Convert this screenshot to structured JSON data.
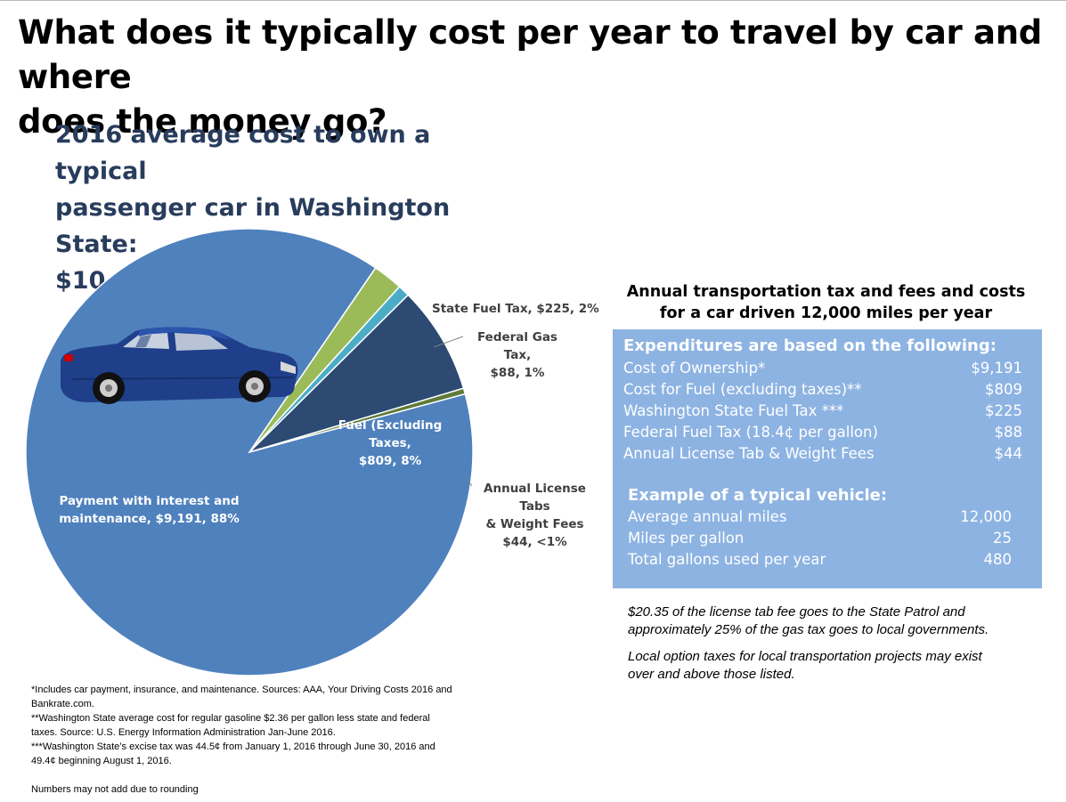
{
  "page": {
    "title_line1": "What does it typically cost per year to travel by car and where",
    "title_line2": "does  the money go?",
    "subtitle_line1": "2016 average cost to own a typical",
    "subtitle_line2": "passenger car in Washington State:",
    "subtitle_line3": "$10,357 per year"
  },
  "chart_data": {
    "type": "pie",
    "title": "2016 average cost to own a typical passenger car in Washington State: $10,357 per year",
    "total": 10357,
    "slices": [
      {
        "label": "Payment with interest and maintenance",
        "value": 9191,
        "percent": "88%",
        "color": "#4f81bd"
      },
      {
        "label": "State Fuel Tax",
        "value": 225,
        "percent": "2%",
        "color": "#9bbb59"
      },
      {
        "label": "Federal Gas Tax",
        "value": 88,
        "percent": "1%",
        "color": "#4bacc6"
      },
      {
        "label": "Fuel (Excluding Taxes)",
        "value": 809,
        "percent": "8%",
        "color": "#2c4a72"
      },
      {
        "label": "Annual License Tabs & Weight Fees",
        "value": 44,
        "percent": "<1%",
        "color": "#5f7a3a"
      }
    ]
  },
  "labels": {
    "payment_1": "Payment with interest and",
    "payment_2": "maintenance, $9,191, 88%",
    "state_fuel": "State Fuel Tax, $225, 2%",
    "federal_1": "Federal Gas Tax,",
    "federal_2": "$88, 1%",
    "fuel_1": "Fuel (Excluding Taxes,",
    "fuel_2": "$809, 8%",
    "license_1": "Annual License Tabs",
    "license_2": "& Weight Fees",
    "license_3": "$44, <1%"
  },
  "table": {
    "heading_1": "Annual transportation tax and fees and costs",
    "heading_2": "for a car driven 12,000 miles per year",
    "expenditures_title": "Expenditures are based on the following:",
    "expenditures": [
      {
        "label": "Cost of Ownership*",
        "value": "$9,191"
      },
      {
        "label": "Cost for Fuel (excluding taxes)**",
        "value": "$809"
      },
      {
        "label": "Washington State Fuel Tax ***",
        "value": "$225"
      },
      {
        "label": "Federal Fuel  Tax (18.4¢ per gallon)",
        "value": "$88"
      },
      {
        "label": "Annual License Tab & Weight Fees",
        "value": "$44"
      }
    ],
    "example_title": "Example of a typical vehicle:",
    "example": [
      {
        "label": "Average annual miles",
        "value": "12,000"
      },
      {
        "label": "Miles per gallon",
        "value": "25"
      },
      {
        "label": "Total gallons used per year",
        "value": "480"
      }
    ]
  },
  "notes": {
    "note1_line1": "$20.35 of the license tab fee goes to the State Patrol and",
    "note1_line2": "approximately 25% of the gas tax goes to local governments.",
    "note2_line1": "Local option taxes for local transportation projects may exist",
    "note2_line2": "over and above those listed."
  },
  "footnotes": {
    "f1_line1": "*Includes car payment, insurance, and maintenance. Sources: AAA, Your Driving Costs 2016 and",
    "f1_line2": "Bankrate.com.",
    "f2_line1": "**Washington State average cost for regular gasoline $2.36 per gallon less state and federal",
    "f2_line2": "taxes. Source: U.S. Energy Information Administration Jan-June 2016.",
    "f3_line1": "***Washington State’s excise tax was 44.5¢ from January 1, 2016 through June 30, 2016 and",
    "f3_line2": "49.4¢ beginning August 1, 2016.",
    "f4": "Numbers may not add due to rounding"
  }
}
